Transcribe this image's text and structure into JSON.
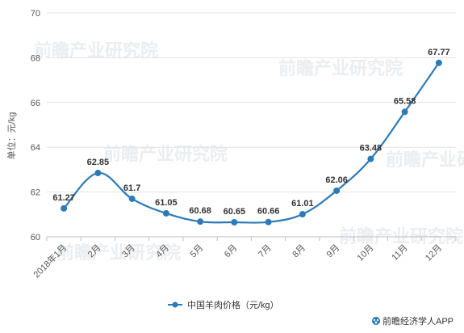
{
  "chart_data": {
    "type": "line",
    "categories": [
      "2018年1月",
      "2月",
      "3月",
      "4月",
      "5月",
      "6月",
      "7月",
      "8月",
      "9月",
      "10月",
      "11月",
      "12月"
    ],
    "series": [
      {
        "name": "中国羊肉价格（元/kg）",
        "values": [
          61.27,
          62.85,
          61.7,
          61.05,
          60.68,
          60.65,
          60.66,
          61.01,
          62.06,
          63.48,
          65.58,
          67.77
        ]
      }
    ],
    "ylabel": "单位：元/kg",
    "ylim": [
      60,
      70
    ],
    "yticks": [
      60,
      62,
      64,
      66,
      68,
      70
    ],
    "grid": true,
    "legend": "bottom",
    "color": "#2C7BB6"
  },
  "watermark": "前瞻产业研究院",
  "brand": {
    "icon": "paw-icon",
    "text": "前瞻经济学人APP"
  }
}
